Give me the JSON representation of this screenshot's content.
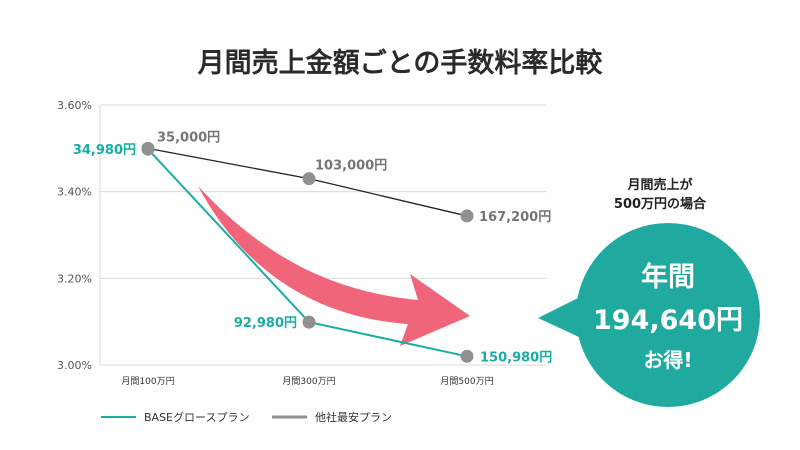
{
  "colors": {
    "base": "#1aaea2",
    "other_line": "#222222",
    "other_marker": "#909090",
    "arrow": "#f0657a",
    "bubble": "#20aa9f",
    "grid": "#d9d9d9"
  },
  "chart_data": {
    "type": "line",
    "title": "月間売上金額ごとの手数料率比較",
    "categories": [
      "月間100万円",
      "月間300万円",
      "月間500万円"
    ],
    "y_ticks": [
      "3.60%",
      "3.40%",
      "3.20%",
      "3.00%"
    ],
    "ylim": [
      3.0,
      3.6
    ],
    "grid": "horizontal",
    "legend_position": "bottom-left",
    "series": [
      {
        "name": "BASEグロースプラン",
        "values": [
          3.498,
          3.099,
          3.02
        ],
        "point_labels": [
          "34,980円",
          "92,980円",
          "150,980円"
        ]
      },
      {
        "name": "他社最安プラン",
        "values": [
          3.5,
          3.43,
          3.344
        ],
        "point_labels": [
          "35,000円",
          "103,000円",
          "167,200円"
        ]
      }
    ],
    "callout": {
      "note_line1": "月間売上が",
      "note_line2": "500万円の場合",
      "bubble_line1": "年間",
      "bubble_line2": "194,640円",
      "bubble_line3": "お得!"
    }
  }
}
